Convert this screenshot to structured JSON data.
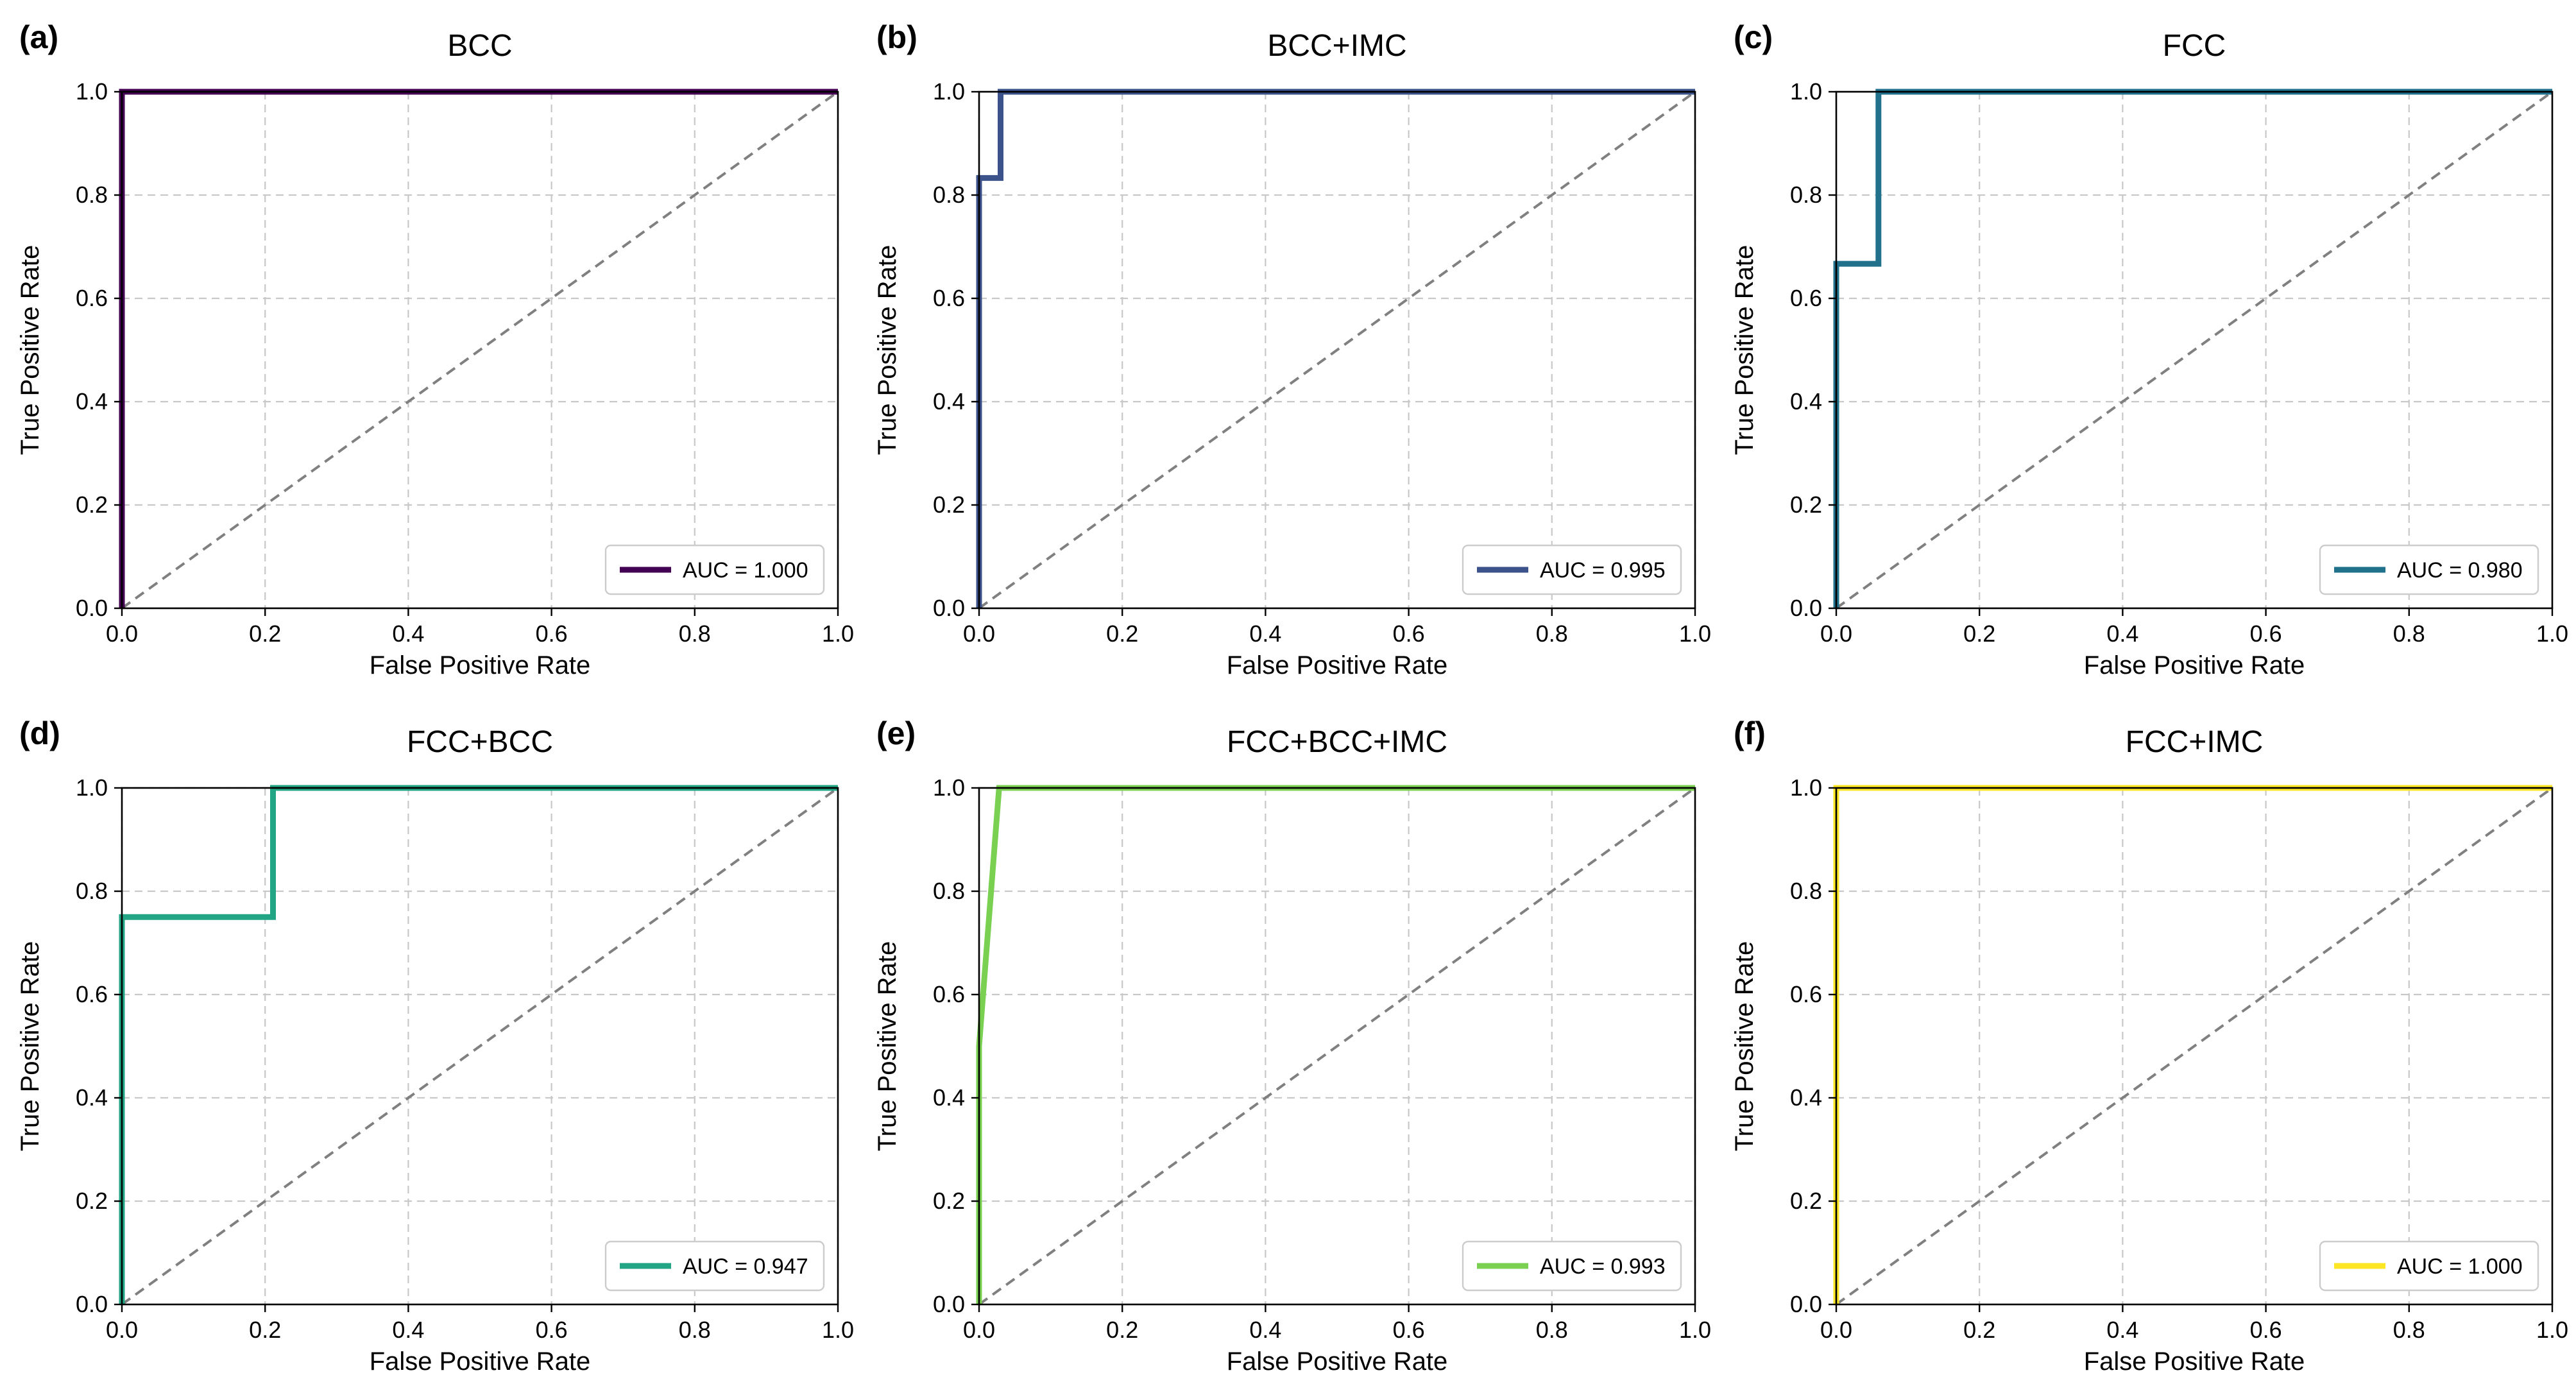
{
  "chart_data": [
    {
      "panel": "(a)",
      "type": "line",
      "title": "BCC",
      "xlabel": "False Positive Rate",
      "ylabel": "True Positive Rate",
      "xlim": [
        0,
        1
      ],
      "ylim": [
        0,
        1
      ],
      "xticks": [
        "0.0",
        "0.2",
        "0.4",
        "0.6",
        "0.8",
        "1.0"
      ],
      "yticks": [
        "0.0",
        "0.2",
        "0.4",
        "0.6",
        "0.8",
        "1.0"
      ],
      "grid": true,
      "legend_position": "bottom-right",
      "color": "#440154",
      "series": [
        {
          "name": "AUC = 1.000",
          "x": [
            0,
            0,
            1
          ],
          "y": [
            0,
            1,
            1
          ]
        }
      ]
    },
    {
      "panel": "(b)",
      "type": "line",
      "title": "BCC+IMC",
      "xlabel": "False Positive Rate",
      "ylabel": "True Positive Rate",
      "xlim": [
        0,
        1
      ],
      "ylim": [
        0,
        1
      ],
      "xticks": [
        "0.0",
        "0.2",
        "0.4",
        "0.6",
        "0.8",
        "1.0"
      ],
      "yticks": [
        "0.0",
        "0.2",
        "0.4",
        "0.6",
        "0.8",
        "1.0"
      ],
      "grid": true,
      "legend_position": "bottom-right",
      "color": "#3b528b",
      "series": [
        {
          "name": "AUC = 0.995",
          "x": [
            0,
            0,
            0.03,
            0.03,
            1
          ],
          "y": [
            0,
            0.833,
            0.833,
            1,
            1
          ]
        }
      ]
    },
    {
      "panel": "(c)",
      "type": "line",
      "title": "FCC",
      "xlabel": "False Positive Rate",
      "ylabel": "True Positive Rate",
      "xlim": [
        0,
        1
      ],
      "ylim": [
        0,
        1
      ],
      "xticks": [
        "0.0",
        "0.2",
        "0.4",
        "0.6",
        "0.8",
        "1.0"
      ],
      "yticks": [
        "0.0",
        "0.2",
        "0.4",
        "0.6",
        "0.8",
        "1.0"
      ],
      "grid": true,
      "legend_position": "bottom-right",
      "color": "#21718d",
      "series": [
        {
          "name": "AUC = 0.980",
          "x": [
            0,
            0,
            0.059,
            0.059,
            1
          ],
          "y": [
            0,
            0.667,
            0.667,
            1,
            1
          ]
        }
      ]
    },
    {
      "panel": "(d)",
      "type": "line",
      "title": "FCC+BCC",
      "xlabel": "False Positive Rate",
      "ylabel": "True Positive Rate",
      "xlim": [
        0,
        1
      ],
      "ylim": [
        0,
        1
      ],
      "xticks": [
        "0.0",
        "0.2",
        "0.4",
        "0.6",
        "0.8",
        "1.0"
      ],
      "yticks": [
        "0.0",
        "0.2",
        "0.4",
        "0.6",
        "0.8",
        "1.0"
      ],
      "grid": true,
      "legend_position": "bottom-right",
      "color": "#21a585",
      "series": [
        {
          "name": "AUC = 0.947",
          "x": [
            0,
            0,
            0.211,
            0.211,
            1
          ],
          "y": [
            0,
            0.75,
            0.75,
            1,
            1
          ]
        }
      ]
    },
    {
      "panel": "(e)",
      "type": "line",
      "title": "FCC+BCC+IMC",
      "xlabel": "False Positive Rate",
      "ylabel": "True Positive Rate",
      "xlim": [
        0,
        1
      ],
      "ylim": [
        0,
        1
      ],
      "xticks": [
        "0.0",
        "0.2",
        "0.4",
        "0.6",
        "0.8",
        "1.0"
      ],
      "yticks": [
        "0.0",
        "0.2",
        "0.4",
        "0.6",
        "0.8",
        "1.0"
      ],
      "grid": true,
      "legend_position": "bottom-right",
      "color": "#7ad151",
      "series": [
        {
          "name": "AUC = 0.993",
          "x": [
            0,
            0,
            0.028,
            1
          ],
          "y": [
            0,
            0.5,
            1,
            1
          ]
        }
      ]
    },
    {
      "panel": "(f)",
      "type": "line",
      "title": "FCC+IMC",
      "xlabel": "False Positive Rate",
      "ylabel": "True Positive Rate",
      "xlim": [
        0,
        1
      ],
      "ylim": [
        0,
        1
      ],
      "xticks": [
        "0.0",
        "0.2",
        "0.4",
        "0.6",
        "0.8",
        "1.0"
      ],
      "yticks": [
        "0.0",
        "0.2",
        "0.4",
        "0.6",
        "0.8",
        "1.0"
      ],
      "grid": true,
      "legend_position": "bottom-right",
      "color": "#fde725",
      "series": [
        {
          "name": "AUC = 1.000",
          "x": [
            0,
            0,
            1
          ],
          "y": [
            0,
            1,
            1
          ]
        }
      ]
    }
  ]
}
